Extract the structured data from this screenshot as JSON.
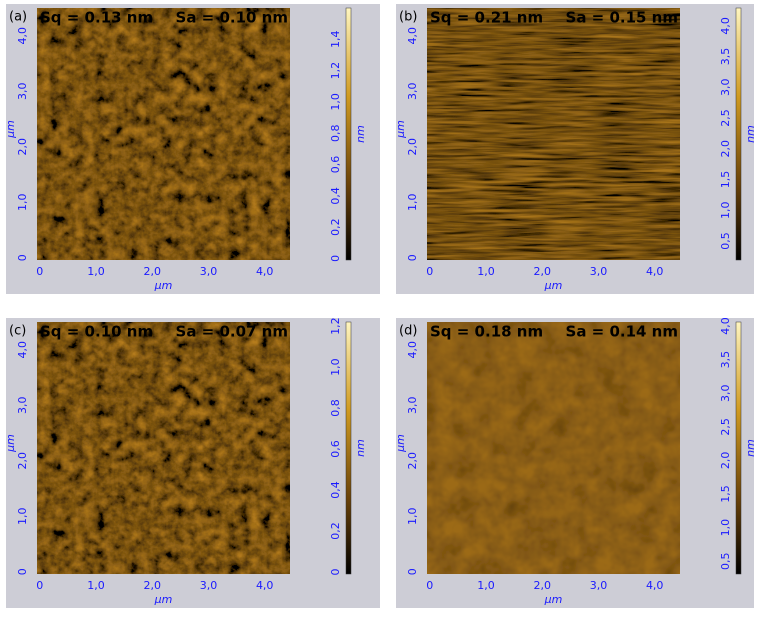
{
  "panels": [
    {
      "label": "(a)",
      "sq": "Sq = 0.13 nm",
      "sa": "Sa = 0.10 nm",
      "texture": "isotropic",
      "x_axis": {
        "label": "µm",
        "lim": [
          -0.05,
          4.45
        ],
        "ticks": [
          {
            "value": 0,
            "label": "0"
          },
          {
            "value": 1,
            "label": "1,0"
          },
          {
            "value": 2,
            "label": "2,0"
          },
          {
            "value": 3,
            "label": "3,0"
          },
          {
            "value": 4,
            "label": "4,0"
          }
        ]
      },
      "y_axis": {
        "label": "µm",
        "lim": [
          -0.04,
          4.5
        ],
        "ticks": [
          {
            "value": 0,
            "label": "0"
          },
          {
            "value": 1,
            "label": "1,0"
          },
          {
            "value": 2,
            "label": "2,0"
          },
          {
            "value": 3,
            "label": "3,0"
          },
          {
            "value": 4,
            "label": "4,0"
          }
        ]
      },
      "colorbar": {
        "label": "nm",
        "lim": [
          -0.01,
          1.6
        ],
        "ticks": [
          {
            "value": 0,
            "label": "0"
          },
          {
            "value": 0.2,
            "label": "0,2"
          },
          {
            "value": 0.4,
            "label": "0,4"
          },
          {
            "value": 0.6,
            "label": "0,6"
          },
          {
            "value": 0.8,
            "label": "0,8"
          },
          {
            "value": 1,
            "label": "1,0"
          },
          {
            "value": 1.2,
            "label": "1,2"
          },
          {
            "value": 1.4,
            "label": "1,4"
          }
        ]
      }
    },
    {
      "label": "(b)",
      "sq": "Sq = 0.21 nm",
      "sa": "Sa = 0.15 nm",
      "texture": "streaked",
      "x_axis": {
        "label": "µm",
        "lim": [
          -0.05,
          4.45
        ],
        "ticks": [
          {
            "value": 0,
            "label": "0"
          },
          {
            "value": 1,
            "label": "1,0"
          },
          {
            "value": 2,
            "label": "2,0"
          },
          {
            "value": 3,
            "label": "3,0"
          },
          {
            "value": 4,
            "label": "4,0"
          }
        ]
      },
      "y_axis": {
        "label": "µm",
        "lim": [
          -0.04,
          4.5
        ],
        "ticks": [
          {
            "value": 0,
            "label": "0"
          },
          {
            "value": 1,
            "label": "1,0"
          },
          {
            "value": 2,
            "label": "2,0"
          },
          {
            "value": 3,
            "label": "3,0"
          },
          {
            "value": 4,
            "label": "4,0"
          }
        ]
      },
      "colorbar": {
        "label": "nm",
        "lim": [
          0.19,
          4.29
        ],
        "ticks": [
          {
            "value": 0.5,
            "label": "0,5"
          },
          {
            "value": 1,
            "label": "1,0"
          },
          {
            "value": 1.5,
            "label": "1,5"
          },
          {
            "value": 2,
            "label": "2,0"
          },
          {
            "value": 2.5,
            "label": "2,5"
          },
          {
            "value": 3,
            "label": "3,0"
          },
          {
            "value": 3.5,
            "label": "3,5"
          },
          {
            "value": 4,
            "label": "4,0"
          }
        ]
      }
    },
    {
      "label": "(c)",
      "sq": "Sq = 0.10 nm",
      "sa": "Sa = 0.07 nm",
      "texture": "isotropic",
      "x_axis": {
        "label": "µm",
        "lim": [
          -0.05,
          4.45
        ],
        "ticks": [
          {
            "value": 0,
            "label": "0"
          },
          {
            "value": 1,
            "label": "1,0"
          },
          {
            "value": 2,
            "label": "2,0"
          },
          {
            "value": 3,
            "label": "3,0"
          },
          {
            "value": 4,
            "label": "4,0"
          }
        ]
      },
      "y_axis": {
        "label": "µm",
        "lim": [
          -0.04,
          4.5
        ],
        "ticks": [
          {
            "value": 0,
            "label": "0"
          },
          {
            "value": 1,
            "label": "1,0"
          },
          {
            "value": 2,
            "label": "2,0"
          },
          {
            "value": 3,
            "label": "3,0"
          },
          {
            "value": 4,
            "label": "4,0"
          }
        ]
      },
      "colorbar": {
        "label": "nm",
        "lim": [
          -0.01,
          1.22
        ],
        "ticks": [
          {
            "value": 0,
            "label": "0"
          },
          {
            "value": 0.2,
            "label": "0,2"
          },
          {
            "value": 0.4,
            "label": "0,4"
          },
          {
            "value": 0.6,
            "label": "0,6"
          },
          {
            "value": 0.8,
            "label": "0,8"
          },
          {
            "value": 1,
            "label": "1,0"
          },
          {
            "value": 1.2,
            "label": "1,2"
          }
        ]
      }
    },
    {
      "label": "(d)",
      "sq": "Sq = 0.18 nm",
      "sa": "Sa = 0.14 nm",
      "texture": "smooth",
      "x_axis": {
        "label": "µm",
        "lim": [
          -0.05,
          4.45
        ],
        "ticks": [
          {
            "value": 0,
            "label": "0"
          },
          {
            "value": 1,
            "label": "1,0"
          },
          {
            "value": 2,
            "label": "2,0"
          },
          {
            "value": 3,
            "label": "3,0"
          },
          {
            "value": 4,
            "label": "4,0"
          }
        ]
      },
      "y_axis": {
        "label": "µm",
        "lim": [
          -0.04,
          4.5
        ],
        "ticks": [
          {
            "value": 0,
            "label": "0"
          },
          {
            "value": 1,
            "label": "1,0"
          },
          {
            "value": 2,
            "label": "2,0"
          },
          {
            "value": 3,
            "label": "3,0"
          },
          {
            "value": 4,
            "label": "4,0"
          }
        ]
      },
      "colorbar": {
        "label": "nm",
        "lim": [
          0.31,
          4.06
        ],
        "ticks": [
          {
            "value": 0.5,
            "label": "0,5"
          },
          {
            "value": 1,
            "label": "1,0"
          },
          {
            "value": 1.5,
            "label": "1,5"
          },
          {
            "value": 2,
            "label": "2,0"
          },
          {
            "value": 2.5,
            "label": "2,5"
          },
          {
            "value": 3,
            "label": "3,0"
          },
          {
            "value": 3.5,
            "label": "3,5"
          },
          {
            "value": 4,
            "label": "4,0"
          }
        ]
      }
    }
  ]
}
